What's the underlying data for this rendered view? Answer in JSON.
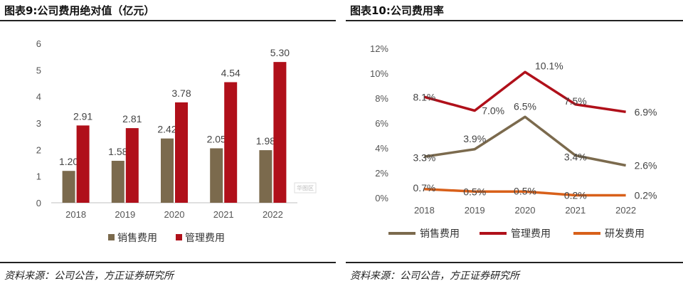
{
  "left": {
    "title": "图表9:公司费用绝对值（亿元）",
    "source": "资料来源：公司公告，方正证券研究所",
    "watermark": "华图区"
  },
  "right": {
    "title": "图表10:公司费用率",
    "source": "资料来源：公司公告，方正证券研究所"
  },
  "colors": {
    "sales": "#7b6a4d",
    "mgmt": "#b0101a",
    "rd": "#d8601a"
  },
  "chart_data": [
    {
      "type": "bar",
      "title": "",
      "categories": [
        "2018",
        "2019",
        "2020",
        "2021",
        "2022"
      ],
      "ylim": [
        0,
        6
      ],
      "yticks": [
        "0",
        "1",
        "2",
        "3",
        "4",
        "5",
        "6"
      ],
      "legend_position": "bottom",
      "grid": false,
      "series": [
        {
          "name": "销售费用",
          "values": [
            1.2,
            1.58,
            2.42,
            2.05,
            1.98
          ],
          "labels": [
            "1.20",
            "1.58",
            "2.42",
            "2.05",
            "1.98"
          ]
        },
        {
          "name": "管理费用",
          "values": [
            2.91,
            2.81,
            3.78,
            4.54,
            5.3
          ],
          "labels": [
            "2.91",
            "2.81",
            "3.78",
            "4.54",
            "5.30"
          ]
        }
      ]
    },
    {
      "type": "line",
      "title": "",
      "categories": [
        "2018",
        "2019",
        "2020",
        "2021",
        "2022"
      ],
      "ylim": [
        0,
        12
      ],
      "yticks": [
        "0%",
        "2%",
        "4%",
        "6%",
        "8%",
        "10%",
        "12%"
      ],
      "legend_position": "bottom",
      "grid": false,
      "series": [
        {
          "name": "销售费用",
          "values": [
            3.3,
            3.9,
            6.5,
            3.4,
            2.6
          ],
          "labels": [
            "3.3%",
            "3.9%",
            "6.5%",
            "3.4%",
            "2.6%"
          ]
        },
        {
          "name": "管理费用",
          "values": [
            8.1,
            7.0,
            10.1,
            7.5,
            6.9
          ],
          "labels": [
            "8.1%",
            "7.0%",
            "10.1%",
            "7.5%",
            "6.9%"
          ]
        },
        {
          "name": "研发费用",
          "values": [
            0.7,
            0.5,
            0.5,
            0.2,
            0.2
          ],
          "labels": [
            "0.7%",
            "0.5%",
            "0.5%",
            "0.2%",
            "0.2%"
          ]
        }
      ]
    }
  ]
}
